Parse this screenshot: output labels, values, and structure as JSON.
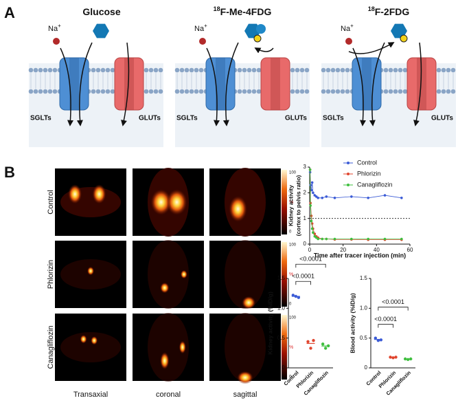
{
  "panel_labels": [
    "A",
    "B"
  ],
  "diagram": {
    "panels": [
      {
        "title": "Glucose",
        "ion": "Na",
        "ion_charge": "+",
        "left": "SGLTs",
        "right": "GLUTs"
      },
      {
        "title_sup": "18",
        "title": "F-Me-4FDG",
        "ion": "Na",
        "ion_charge": "+",
        "left": "SGLTs",
        "right": "GLUTs"
      },
      {
        "title_sup": "18",
        "title": "F-2FDG",
        "ion": "Na",
        "ion_charge": "+",
        "left": "SGLTs",
        "right": "GLUTs"
      }
    ]
  },
  "images": {
    "rows": [
      "Control",
      "Phlorizin",
      "Canagliflozin"
    ],
    "columns": [
      "Transaxial",
      "coronal",
      "sagittal"
    ],
    "colorbar": {
      "max": 100,
      "unit": "%",
      "min": 0
    }
  },
  "chart_data": [
    {
      "type": "line",
      "ylabel": [
        "Kidney activity",
        "(cortex to pelvis ratio)"
      ],
      "xlabel": "Time after tracer injection (min)",
      "x": [
        0.25,
        0.5,
        1,
        1.5,
        2,
        3,
        4,
        5,
        7.5,
        10,
        15,
        25,
        35,
        45,
        55
      ],
      "series": [
        {
          "name": "Control",
          "color": "#3b5bd6",
          "values": [
            2.8,
            2.3,
            2.1,
            2.4,
            2.0,
            1.9,
            1.85,
            1.8,
            1.8,
            1.85,
            1.8,
            1.85,
            1.8,
            1.9,
            1.8
          ]
        },
        {
          "name": "Phlorizin",
          "color": "#e0452e",
          "values": [
            2.9,
            1.6,
            1.1,
            0.8,
            0.6,
            0.4,
            0.3,
            0.25,
            0.2,
            0.2,
            0.18,
            0.18,
            0.17,
            0.17,
            0.17
          ]
        },
        {
          "name": "Canagliflozin",
          "color": "#3fbf3f",
          "values": [
            2.9,
            1.5,
            0.9,
            0.6,
            0.45,
            0.3,
            0.25,
            0.2,
            0.2,
            0.2,
            0.2,
            0.2,
            0.2,
            0.2,
            0.2
          ]
        }
      ],
      "xlim": [
        0,
        60
      ],
      "xticks": [
        0,
        20,
        40,
        60
      ],
      "ylim": [
        0,
        3
      ],
      "yticks": [
        0,
        1,
        2,
        3
      ],
      "hline": 1,
      "legend": "upper right"
    },
    {
      "type": "dot",
      "ylabel": "Kidney activity (%ID/g)",
      "categories": [
        "Control",
        "Phlorizin",
        "Canagliflozin"
      ],
      "colors": [
        "#3b5bd6",
        "#e0452e",
        "#3fbf3f"
      ],
      "points": [
        [
          1.22,
          1.2,
          1.18
        ],
        [
          0.44,
          0.33,
          0.46
        ],
        [
          0.4,
          0.33,
          0.37
        ]
      ],
      "ylim": [
        0,
        1.5
      ],
      "yticks": [
        0,
        0.5,
        {
          "value": 1,
          "label": "1.0"
        },
        1.5
      ],
      "comparisons": [
        {
          "from": "Control",
          "to": "Phlorizin",
          "label": "<0.0001"
        },
        {
          "from": "Control",
          "to": "Canagliflozin",
          "label": "<0.0001"
        }
      ]
    },
    {
      "type": "dot",
      "ylabel": "Blood activity (%ID/g)",
      "categories": [
        "Control",
        "Phlorizin",
        "Canagliflozin"
      ],
      "colors": [
        "#3b5bd6",
        "#e0452e",
        "#3fbf3f"
      ],
      "points": [
        [
          0.5,
          0.46,
          0.47
        ],
        [
          0.18,
          0.17,
          0.18
        ],
        [
          0.15,
          0.14,
          0.15
        ]
      ],
      "ylim": [
        0,
        1.5
      ],
      "yticks": [
        0,
        0.5,
        {
          "value": 1,
          "label": "1.0"
        },
        1.5
      ],
      "comparisons": [
        {
          "from": "Control",
          "to": "Phlorizin",
          "label": "<0.0001"
        },
        {
          "from": "Control",
          "to": "Canagliflozin",
          "label": "<0.0001"
        }
      ]
    }
  ]
}
